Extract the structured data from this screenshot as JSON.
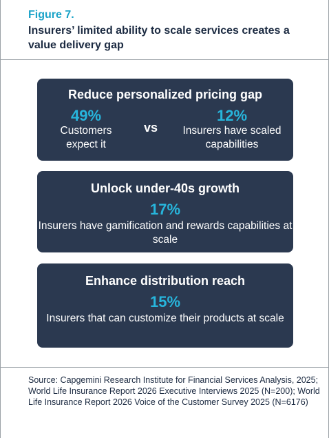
{
  "figure": {
    "label": "Figure 7.",
    "title": "Insurers’ limited ability to scale services creates a value delivery gap"
  },
  "cards": [
    {
      "heading": "Reduce personalized pricing gap",
      "left_stat": "49%",
      "left_desc": "Customers expect it",
      "vs": "vs",
      "right_stat": "12%",
      "right_desc": "Insurers have scaled capabilities"
    },
    {
      "heading": "Unlock under-40s growth",
      "stat": "17%",
      "desc": "Insurers have gamification and rewards capabilities at scale"
    },
    {
      "heading": "Enhance distribution reach",
      "stat": "15%",
      "desc": "Insurers that can customize their products at scale"
    }
  ],
  "source": "Source: Capgemini Research Institute for Financial Services Analysis, 2025; World Life Insurance Report 2026 Executive Interviews 2025 (N=200); World Life Insurance Report 2026 Voice of the Customer Survey 2025 (N=6176)",
  "colors": {
    "card_bg": "#2b3950",
    "accent": "#27b5dc",
    "title": "#1b2a41"
  }
}
